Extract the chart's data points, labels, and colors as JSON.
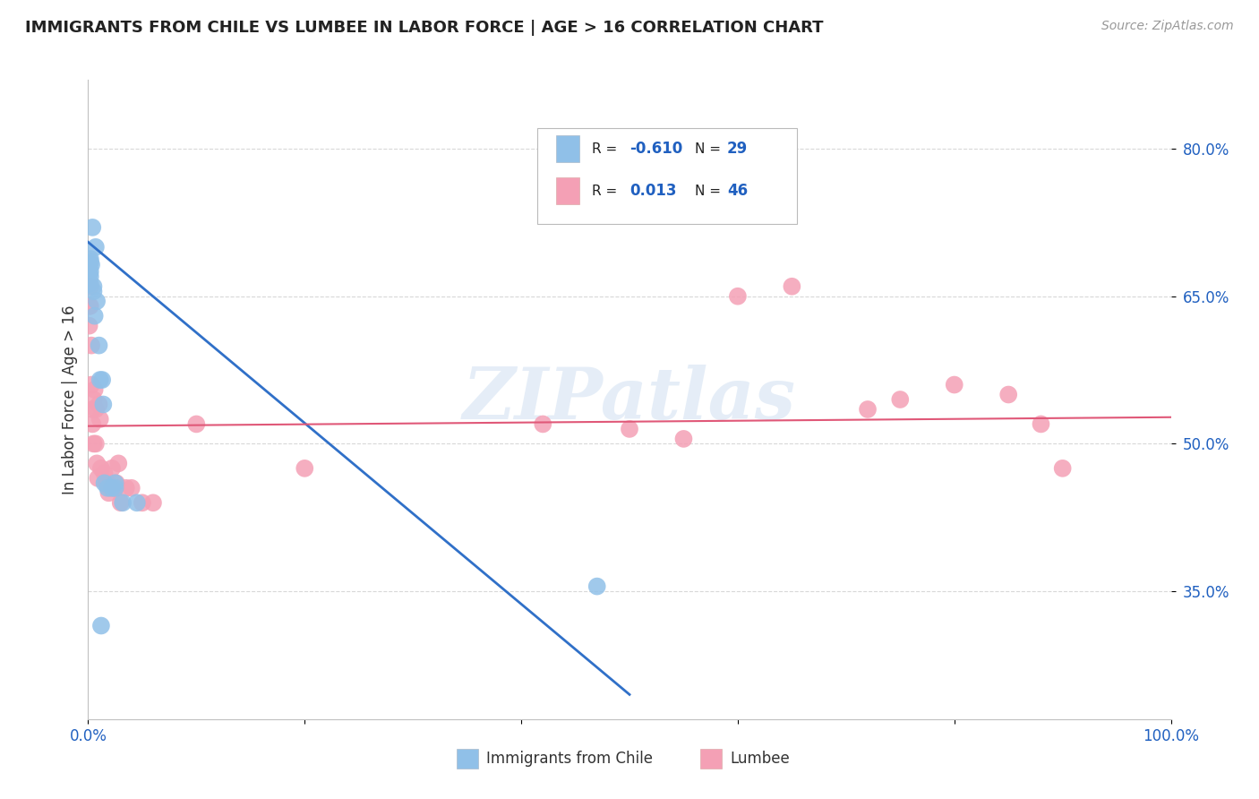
{
  "title": "IMMIGRANTS FROM CHILE VS LUMBEE IN LABOR FORCE | AGE > 16 CORRELATION CHART",
  "source": "Source: ZipAtlas.com",
  "ylabel": "In Labor Force | Age > 16",
  "xlim": [
    0.0,
    1.0
  ],
  "ylim": [
    0.22,
    0.87
  ],
  "chile_r": "-0.610",
  "chile_n": "29",
  "lumbee_r": "0.013",
  "lumbee_n": "46",
  "chile_color": "#90c0e8",
  "lumbee_color": "#f4a0b5",
  "chile_line_color": "#3070c8",
  "lumbee_line_color": "#e05878",
  "chile_points_x": [
    0.001,
    0.001,
    0.001,
    0.001,
    0.002,
    0.002,
    0.002,
    0.002,
    0.002,
    0.003,
    0.004,
    0.005,
    0.005,
    0.006,
    0.007,
    0.008,
    0.01,
    0.011,
    0.013,
    0.014,
    0.015,
    0.018,
    0.022,
    0.025,
    0.025,
    0.032,
    0.045,
    0.47,
    0.012
  ],
  "chile_points_y": [
    0.68,
    0.683,
    0.678,
    0.673,
    0.685,
    0.688,
    0.675,
    0.67,
    0.663,
    0.682,
    0.72,
    0.66,
    0.655,
    0.63,
    0.7,
    0.645,
    0.6,
    0.565,
    0.565,
    0.54,
    0.46,
    0.455,
    0.455,
    0.46,
    0.455,
    0.44,
    0.44,
    0.355,
    0.315
  ],
  "lumbee_points_x": [
    0.001,
    0.001,
    0.002,
    0.002,
    0.003,
    0.003,
    0.004,
    0.004,
    0.005,
    0.005,
    0.006,
    0.007,
    0.007,
    0.008,
    0.009,
    0.01,
    0.011,
    0.012,
    0.015,
    0.017,
    0.018,
    0.019,
    0.02,
    0.022,
    0.024,
    0.025,
    0.026,
    0.028,
    0.03,
    0.035,
    0.04,
    0.05,
    0.06,
    0.42,
    0.5,
    0.55,
    0.6,
    0.65,
    0.72,
    0.75,
    0.8,
    0.85,
    0.88,
    0.9,
    0.1,
    0.2
  ],
  "lumbee_points_y": [
    0.64,
    0.62,
    0.66,
    0.64,
    0.6,
    0.56,
    0.535,
    0.52,
    0.545,
    0.5,
    0.555,
    0.535,
    0.5,
    0.48,
    0.465,
    0.54,
    0.525,
    0.475,
    0.47,
    0.46,
    0.46,
    0.45,
    0.455,
    0.475,
    0.455,
    0.455,
    0.46,
    0.48,
    0.44,
    0.455,
    0.455,
    0.44,
    0.44,
    0.52,
    0.515,
    0.505,
    0.65,
    0.66,
    0.535,
    0.545,
    0.56,
    0.55,
    0.52,
    0.475,
    0.52,
    0.475
  ],
  "chile_line_x": [
    0.0,
    0.5
  ],
  "chile_line_y": [
    0.705,
    0.245
  ],
  "lumbee_line_x": [
    0.0,
    1.0
  ],
  "lumbee_line_y": [
    0.518,
    0.527
  ],
  "watermark": "ZIPatlas",
  "background_color": "#ffffff",
  "grid_color": "#d8d8d8"
}
